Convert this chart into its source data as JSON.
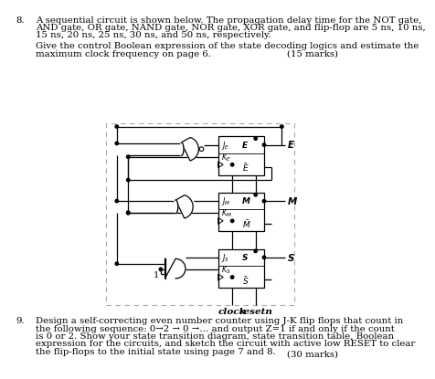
{
  "bg_color": "#ffffff",
  "text_color": "#000000",
  "q8_number": "8.",
  "q8_line1": "A sequential circuit is shown below. The propagation delay time for the NOT gate,",
  "q8_line2": "AND gate, OR gate, NAND gate, NOR gate, XOR gate, and flip-flop are 5 ns, 10 ns,",
  "q8_line3": "15 ns, 20 ns, 25 ns, 30 ns, and 50 ns, respectively.",
  "q8_line4": "Give the control Boolean expression of the state decoding logics and estimate the",
  "q8_line5": "maximum clock frequency on page 6.",
  "marks8": "(15 marks)",
  "q9_number": "9.",
  "q9_line1": "Design a self-correcting even number counter using J-K flip flops that count in",
  "q9_line2": "the following sequence: 0→2 → 0 →… and output Z=1 if and only if the count",
  "q9_line3": "is 0 or 2. Show your state transition diagram, state transition table, Boolean",
  "q9_line4": "expression for the circuits, and sketch the circuit with active low RESET to clear",
  "q9_line5": "the flip-flops to the initial state using page 7 and 8.",
  "marks9": "(30 marks)",
  "clock_label": "clock",
  "resetn_label": "resetn"
}
